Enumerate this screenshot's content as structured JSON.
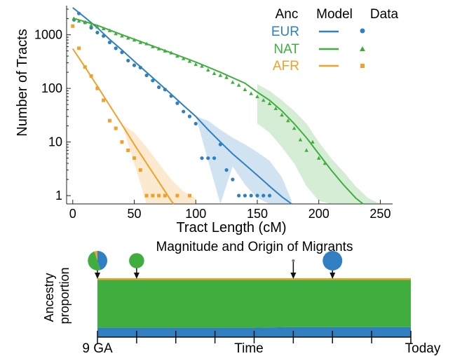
{
  "colors": {
    "EUR": "#2f7fc1",
    "NAT": "#3fae3f",
    "AFR": "#f0a12b"
  },
  "chart_data": [
    {
      "type": "scatter",
      "title": "",
      "xlabel": "Tract Length (cM)",
      "ylabel": "Number of Tracts",
      "xlim": [
        -5,
        260
      ],
      "ylim": [
        0.7,
        3500
      ],
      "yscale": "log",
      "xticks": [
        "0",
        "50",
        "100",
        "150",
        "200",
        "250"
      ],
      "yticks": [
        "1",
        "10",
        "100",
        "1000"
      ],
      "legend": {
        "placement": "top-right",
        "headers": [
          "Anc",
          "Model",
          "Data"
        ],
        "entries": [
          "EUR",
          "NAT",
          "AFR"
        ]
      },
      "series": [
        {
          "name": "EUR",
          "points": [
            [
              1,
              1900
            ],
            [
              5,
              2500
            ],
            [
              10,
              1700
            ],
            [
              15,
              1350
            ],
            [
              20,
              1100
            ],
            [
              25,
              950
            ],
            [
              30,
              720
            ],
            [
              35,
              560
            ],
            [
              40,
              470
            ],
            [
              45,
              330
            ],
            [
              50,
              270
            ],
            [
              55,
              245
            ],
            [
              60,
              175
            ],
            [
              65,
              140
            ],
            [
              70,
              105
            ],
            [
              75,
              95
            ],
            [
              80,
              72
            ],
            [
              85,
              53
            ],
            [
              90,
              37
            ],
            [
              95,
              30
            ],
            [
              100,
              22
            ],
            [
              105,
              5
            ],
            [
              110,
              5
            ],
            [
              115,
              5
            ],
            [
              120,
              9
            ],
            [
              125,
              3
            ],
            [
              130,
              2
            ],
            [
              135,
              1
            ],
            [
              140,
              1
            ],
            [
              145,
              1
            ],
            [
              150,
              1
            ],
            [
              155,
              1
            ],
            [
              160,
              1
            ]
          ],
          "model": [
            [
              0,
              3200
            ],
            [
              10,
              2100
            ],
            [
              20,
              1350
            ],
            [
              30,
              820
            ],
            [
              40,
              520
            ],
            [
              50,
              320
            ],
            [
              60,
              200
            ],
            [
              70,
              125
            ],
            [
              80,
              78
            ],
            [
              90,
              48
            ],
            [
              100,
              30
            ],
            [
              110,
              17
            ],
            [
              120,
              10
            ],
            [
              130,
              6
            ],
            [
              140,
              3.8
            ],
            [
              150,
              2.4
            ],
            [
              160,
              1.5
            ],
            [
              170,
              0.95
            ],
            [
              178,
              0.7
            ]
          ],
          "band_lo": [
            [
              120,
              0.7
            ],
            [
              130,
              3.5
            ],
            [
              140,
              1.6
            ],
            [
              150,
              0.9
            ],
            [
              160,
              0.7
            ],
            [
              175,
              0.7
            ]
          ],
          "band_hi": [
            [
              100,
              30
            ],
            [
              110,
              25
            ],
            [
              120,
              17
            ],
            [
              130,
              12
            ],
            [
              140,
              9
            ],
            [
              150,
              6.5
            ],
            [
              160,
              4.5
            ],
            [
              170,
              2.2
            ],
            [
              178,
              0.8
            ]
          ]
        },
        {
          "name": "NAT",
          "points": [
            [
              1,
              2000
            ],
            [
              5,
              1800
            ],
            [
              10,
              1700
            ],
            [
              15,
              1500
            ],
            [
              20,
              1400
            ],
            [
              25,
              1300
            ],
            [
              30,
              1200
            ],
            [
              35,
              1050
            ],
            [
              40,
              950
            ],
            [
              45,
              870
            ],
            [
              50,
              800
            ],
            [
              55,
              720
            ],
            [
              60,
              680
            ],
            [
              65,
              600
            ],
            [
              70,
              550
            ],
            [
              75,
              500
            ],
            [
              80,
              460
            ],
            [
              85,
              400
            ],
            [
              90,
              360
            ],
            [
              95,
              320
            ],
            [
              100,
              280
            ],
            [
              105,
              260
            ],
            [
              110,
              220
            ],
            [
              115,
              190
            ],
            [
              120,
              175
            ],
            [
              125,
              160
            ],
            [
              130,
              130
            ],
            [
              135,
              115
            ],
            [
              140,
              95
            ],
            [
              145,
              80
            ],
            [
              150,
              70
            ],
            [
              155,
              60
            ],
            [
              160,
              52
            ],
            [
              165,
              42
            ],
            [
              170,
              32
            ],
            [
              175,
              25
            ],
            [
              180,
              18
            ],
            [
              185,
              11
            ],
            [
              190,
              7
            ],
            [
              195,
              10
            ],
            [
              200,
              5
            ],
            [
              205,
              4
            ]
          ],
          "model": [
            [
              0,
              2050
            ],
            [
              20,
              1500
            ],
            [
              40,
              1000
            ],
            [
              60,
              680
            ],
            [
              80,
              460
            ],
            [
              100,
              310
            ],
            [
              120,
              200
            ],
            [
              140,
              125
            ],
            [
              150,
              85
            ],
            [
              160,
              60
            ],
            [
              170,
              38
            ],
            [
              180,
              22
            ],
            [
              190,
              12
            ],
            [
              200,
              6
            ],
            [
              210,
              3
            ],
            [
              220,
              1.6
            ],
            [
              230,
              0.9
            ],
            [
              236,
              0.7
            ]
          ],
          "band_lo": [
            [
              150,
              22
            ],
            [
              160,
              15
            ],
            [
              170,
              8
            ],
            [
              180,
              4
            ],
            [
              190,
              1.5
            ],
            [
              200,
              0.8
            ],
            [
              210,
              0.7
            ],
            [
              230,
              0.7
            ]
          ],
          "band_hi": [
            [
              150,
              120
            ],
            [
              160,
              90
            ],
            [
              170,
              60
            ],
            [
              180,
              38
            ],
            [
              190,
              22
            ],
            [
              200,
              10
            ],
            [
              210,
              5
            ],
            [
              220,
              2.8
            ],
            [
              230,
              1.5
            ],
            [
              240,
              0.9
            ],
            [
              250,
              0.7
            ]
          ]
        },
        {
          "name": "AFR",
          "points": [
            [
              0,
              1450
            ],
            [
              5,
              560
            ],
            [
              10,
              250
            ],
            [
              15,
              170
            ],
            [
              20,
              100
            ],
            [
              25,
              60
            ],
            [
              30,
              25
            ],
            [
              35,
              18
            ],
            [
              40,
              10
            ],
            [
              45,
              7
            ],
            [
              50,
              5
            ],
            [
              55,
              3
            ],
            [
              60,
              1
            ],
            [
              65,
              1
            ],
            [
              70,
              1
            ],
            [
              75,
              1
            ],
            [
              85,
              1
            ],
            [
              95,
              1
            ]
          ],
          "model": [
            [
              0,
              550
            ],
            [
              10,
              250
            ],
            [
              20,
              110
            ],
            [
              30,
              48
            ],
            [
              40,
              21
            ],
            [
              50,
              9
            ],
            [
              60,
              4
            ],
            [
              70,
              1.8
            ],
            [
              80,
              0.8
            ],
            [
              82,
              0.7
            ]
          ],
          "band_lo": [
            [
              60,
              0.7
            ],
            [
              70,
              0.7
            ],
            [
              80,
              0.7
            ],
            [
              90,
              0.7
            ],
            [
              100,
              0.7
            ]
          ],
          "band_hi": [
            [
              40,
              22
            ],
            [
              50,
              15
            ],
            [
              60,
              8
            ],
            [
              70,
              4
            ],
            [
              80,
              2
            ],
            [
              90,
              1.2
            ],
            [
              100,
              0.9
            ]
          ]
        }
      ]
    },
    {
      "type": "area",
      "title": "Magnitude and Origin of Migrants",
      "xlabel": "Time",
      "ylabel": "Ancestry proportion",
      "xtick_labels": {
        "start": "9 GA",
        "end": "Today"
      },
      "n_ticks": 9,
      "series": [
        {
          "name": "EUR",
          "values": [
            0.16,
            0.16,
            0.16,
            0.16,
            0.16,
            0.17,
            0.17,
            0.17,
            0.17
          ]
        },
        {
          "name": "NAT",
          "values": [
            0.81,
            0.81,
            0.81,
            0.81,
            0.81,
            0.8,
            0.8,
            0.8,
            0.8
          ]
        },
        {
          "name": "AFR",
          "values": [
            0.03,
            0.03,
            0.03,
            0.03,
            0.03,
            0.03,
            0.03,
            0.03,
            0.03
          ]
        }
      ],
      "pulses": [
        {
          "time_index": 0,
          "fractions": {
            "EUR": 0.45,
            "NAT": 0.5,
            "AFR": 0.05
          }
        },
        {
          "time_index": 1,
          "fractions": {
            "EUR": 0.0,
            "NAT": 0.5,
            "AFR": 0.0
          }
        },
        {
          "time_index": 5,
          "fractions": {
            "EUR": 0.0,
            "NAT": 0.0,
            "AFR": 0.0
          }
        },
        {
          "time_index": 6,
          "fractions": {
            "EUR": 1.0,
            "NAT": 0.0,
            "AFR": 0.0
          }
        }
      ]
    }
  ]
}
